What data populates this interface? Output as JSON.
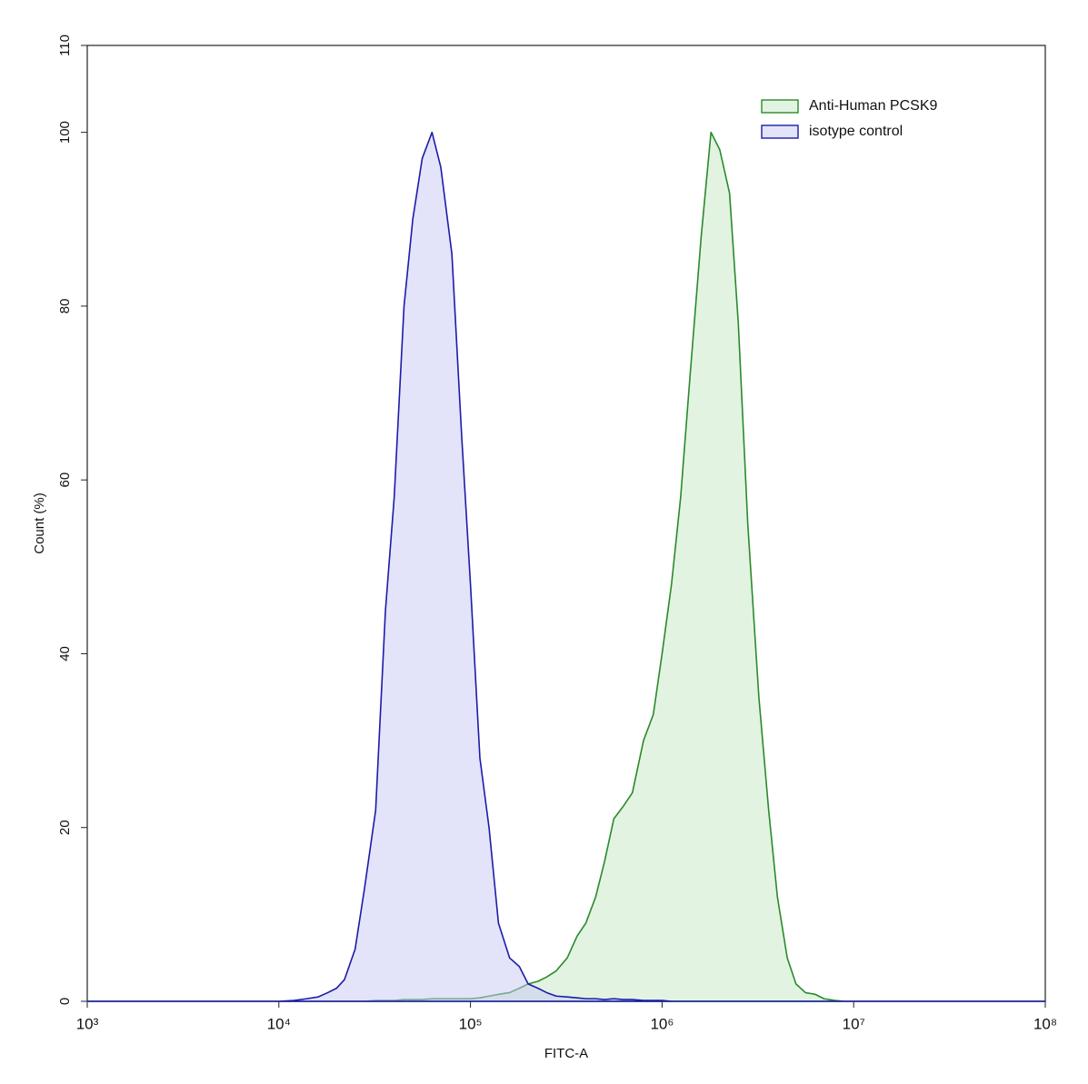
{
  "chart_data": {
    "type": "area",
    "x_label": "FITC-A",
    "y_label": "Count (%)",
    "x_log": true,
    "xlim": [
      1000,
      100000000
    ],
    "xticks": [
      {
        "value": 1000,
        "label": "10³"
      },
      {
        "value": 10000,
        "label": "10⁴"
      },
      {
        "value": 100000,
        "label": "10⁵"
      },
      {
        "value": 1000000,
        "label": "10⁶"
      },
      {
        "value": 10000000,
        "label": "10⁷"
      },
      {
        "value": 100000000,
        "label": "10⁸"
      }
    ],
    "ylim": [
      0,
      110
    ],
    "yticks": [
      0,
      20,
      40,
      60,
      80,
      100,
      110
    ],
    "legend": "top-right",
    "x": [
      1000,
      10000,
      12000,
      14000,
      16000,
      18000,
      20000,
      22000,
      25000,
      28000,
      32000,
      36000,
      40000,
      45000,
      50000,
      56000,
      63000,
      70000,
      80000,
      90000,
      100000,
      112000,
      125000,
      140000,
      160000,
      180000,
      200000,
      225000,
      250000,
      280000,
      320000,
      360000,
      400000,
      450000,
      500000,
      560000,
      630000,
      700000,
      800000,
      900000,
      1000000,
      1120000,
      1250000,
      1400000,
      1600000,
      1800000,
      2000000,
      2250000,
      2500000,
      2800000,
      3200000,
      3600000,
      4000000,
      4500000,
      5000000,
      5600000,
      6300000,
      7000000,
      8000000,
      9000000,
      10000000,
      12000000,
      100000000
    ],
    "series": [
      {
        "name": "Anti-Human PCSK9",
        "color": "#2a8a2a",
        "fill": "rgba(190,228,190,0.45)",
        "values": [
          0,
          0,
          0,
          0,
          0,
          0,
          0,
          0,
          0,
          0,
          0.1,
          0.1,
          0.1,
          0.2,
          0.2,
          0.2,
          0.3,
          0.3,
          0.3,
          0.3,
          0.3,
          0.4,
          0.6,
          0.8,
          1,
          1.5,
          2,
          2.3,
          2.8,
          3.5,
          5,
          7.5,
          9,
          12,
          16,
          21,
          22.5,
          24,
          30,
          33,
          40,
          48,
          58,
          72,
          88,
          100,
          98,
          93,
          78,
          55,
          35,
          22,
          12,
          5,
          2,
          1,
          0.8,
          0.3,
          0.1,
          0,
          0,
          0,
          0
        ]
      },
      {
        "name": "isotype control",
        "color": "#1c1ca8",
        "fill": "rgba(200,200,245,0.5)",
        "values": [
          0,
          0,
          0.1,
          0.3,
          0.5,
          1,
          1.5,
          2.5,
          6,
          13,
          22,
          45,
          58,
          80,
          90,
          97,
          100,
          96,
          86,
          65,
          48,
          28,
          20,
          9,
          5,
          4,
          2,
          1.5,
          1,
          0.6,
          0.5,
          0.4,
          0.3,
          0.3,
          0.2,
          0.3,
          0.2,
          0.2,
          0.1,
          0.1,
          0.1,
          0,
          0,
          0,
          0,
          0,
          0,
          0,
          0,
          0,
          0,
          0,
          0,
          0,
          0,
          0,
          0,
          0,
          0,
          0,
          0,
          0,
          0
        ]
      }
    ]
  }
}
